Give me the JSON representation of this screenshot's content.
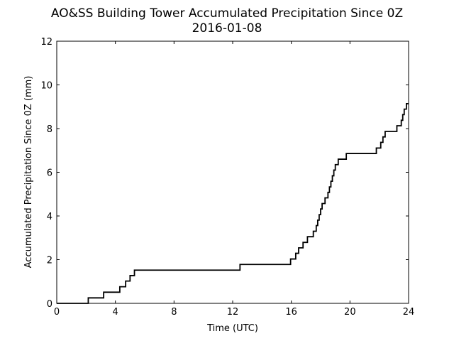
{
  "chart_data": {
    "type": "line",
    "title": "AO&SS Building Tower Accumulated Precipitation Since 0Z",
    "subtitle": "2016-01-08",
    "xlabel": "Time (UTC)",
    "ylabel": "Accumulated Precipitation Since 0Z (mm)",
    "xlim": [
      0,
      24
    ],
    "ylim": [
      0,
      12
    ],
    "xticks": [
      0,
      4,
      8,
      12,
      16,
      20,
      24
    ],
    "yticks": [
      0,
      2,
      4,
      6,
      8,
      10,
      12
    ],
    "grid": false,
    "legend": "none",
    "line_color": "#000000",
    "series": [
      {
        "x": [
          0,
          2.15,
          2.15,
          3.2,
          3.2,
          4.3,
          4.3,
          4.7,
          4.7,
          5.0,
          5.0,
          5.3,
          5.3,
          12.5,
          12.5,
          15.95,
          15.95,
          16.3,
          16.3,
          16.5,
          16.5,
          16.8,
          16.8,
          17.1,
          17.1,
          17.5,
          17.5,
          17.7,
          17.7,
          17.8,
          17.8,
          17.9,
          17.9,
          18.0,
          18.0,
          18.1,
          18.1,
          18.3,
          18.3,
          18.5,
          18.5,
          18.6,
          18.6,
          18.7,
          18.7,
          18.8,
          18.8,
          18.9,
          18.9,
          19.0,
          19.0,
          19.2,
          19.2,
          19.75,
          19.75,
          21.8,
          21.8,
          22.1,
          22.1,
          22.25,
          22.25,
          22.4,
          22.4,
          23.2,
          23.2,
          23.5,
          23.5,
          23.6,
          23.6,
          23.7,
          23.7,
          23.85,
          23.85,
          23.95,
          23.95,
          24.0
        ],
        "y": [
          0,
          0,
          0.25,
          0.25,
          0.51,
          0.51,
          0.76,
          0.76,
          1.02,
          1.02,
          1.27,
          1.27,
          1.52,
          1.52,
          1.78,
          1.78,
          2.03,
          2.03,
          2.29,
          2.29,
          2.54,
          2.54,
          2.79,
          2.79,
          3.05,
          3.05,
          3.3,
          3.3,
          3.56,
          3.56,
          3.81,
          3.81,
          4.06,
          4.06,
          4.32,
          4.32,
          4.57,
          4.57,
          4.83,
          4.83,
          5.08,
          5.08,
          5.33,
          5.33,
          5.59,
          5.59,
          5.84,
          5.84,
          6.1,
          6.1,
          6.35,
          6.35,
          6.6,
          6.6,
          6.86,
          6.86,
          7.11,
          7.11,
          7.37,
          7.37,
          7.62,
          7.62,
          7.87,
          7.87,
          8.13,
          8.13,
          8.38,
          8.38,
          8.64,
          8.64,
          8.89,
          8.89,
          9.14,
          9.14,
          9.14,
          9.14
        ]
      }
    ]
  }
}
